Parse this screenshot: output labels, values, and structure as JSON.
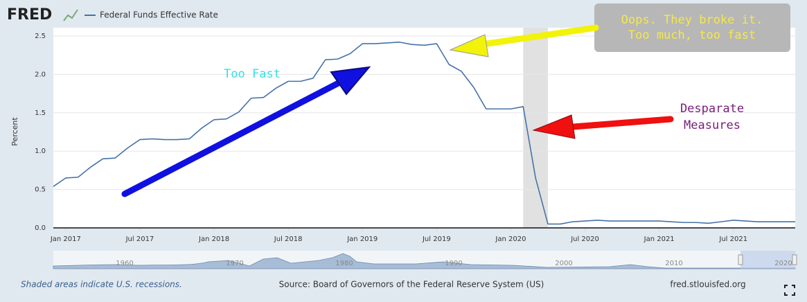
{
  "chart_data": {
    "type": "line",
    "logo": "FRED",
    "ylabel": "Percent",
    "x": [
      "2016-12",
      "2017-01",
      "2017-02",
      "2017-03",
      "2017-04",
      "2017-05",
      "2017-06",
      "2017-07",
      "2017-08",
      "2017-09",
      "2017-10",
      "2017-11",
      "2017-12",
      "2018-01",
      "2018-02",
      "2018-03",
      "2018-04",
      "2018-05",
      "2018-06",
      "2018-07",
      "2018-08",
      "2018-09",
      "2018-10",
      "2018-11",
      "2018-12",
      "2019-01",
      "2019-02",
      "2019-03",
      "2019-04",
      "2019-05",
      "2019-06",
      "2019-07",
      "2019-08",
      "2019-09",
      "2019-10",
      "2019-11",
      "2019-12",
      "2020-01",
      "2020-02",
      "2020-03",
      "2020-04",
      "2020-05",
      "2020-06",
      "2020-07",
      "2020-08",
      "2020-09",
      "2020-10",
      "2020-11",
      "2020-12",
      "2021-01",
      "2021-02",
      "2021-03",
      "2021-04",
      "2021-05",
      "2021-06",
      "2021-07",
      "2021-08",
      "2021-09",
      "2021-10",
      "2021-11",
      "2021-12"
    ],
    "series": [
      {
        "name": "Federal Funds Effective Rate",
        "color": "#4572a7",
        "values": [
          0.54,
          0.65,
          0.66,
          0.79,
          0.9,
          0.91,
          1.04,
          1.15,
          1.16,
          1.15,
          1.15,
          1.16,
          1.3,
          1.41,
          1.42,
          1.51,
          1.69,
          1.7,
          1.82,
          1.91,
          1.91,
          1.95,
          2.19,
          2.2,
          2.27,
          2.4,
          2.4,
          2.41,
          2.42,
          2.39,
          2.38,
          2.4,
          2.13,
          2.04,
          1.83,
          1.55,
          1.55,
          1.55,
          1.58,
          0.65,
          0.05,
          0.05,
          0.08,
          0.09,
          0.1,
          0.09,
          0.09,
          0.09,
          0.09,
          0.09,
          0.08,
          0.07,
          0.07,
          0.06,
          0.08,
          0.1,
          0.09,
          0.08,
          0.08,
          0.08,
          0.08
        ]
      }
    ],
    "xlim": [
      "2016-12",
      "2021-12"
    ],
    "xticks": [
      {
        "value": "2017-01",
        "label": "Jan 2017"
      },
      {
        "value": "2017-07",
        "label": "Jul 2017"
      },
      {
        "value": "2018-01",
        "label": "Jan 2018"
      },
      {
        "value": "2018-07",
        "label": "Jul 2018"
      },
      {
        "value": "2019-01",
        "label": "Jan 2019"
      },
      {
        "value": "2019-07",
        "label": "Jul 2019"
      },
      {
        "value": "2020-01",
        "label": "Jan 2020"
      },
      {
        "value": "2020-07",
        "label": "Jul 2020"
      },
      {
        "value": "2021-01",
        "label": "Jan 2021"
      },
      {
        "value": "2021-07",
        "label": "Jul 2021"
      }
    ],
    "ylim": [
      0,
      2.5
    ],
    "yticks": [
      {
        "value": 0,
        "label": "0.0"
      },
      {
        "value": 0.5,
        "label": "0.5"
      },
      {
        "value": 1,
        "label": "1.0"
      },
      {
        "value": 1.5,
        "label": "1.5"
      },
      {
        "value": 2,
        "label": "2.0"
      },
      {
        "value": 2.5,
        "label": "2.5"
      }
    ],
    "grid": true,
    "recessions": [
      {
        "start": "2020-02",
        "end": "2020-04"
      }
    ],
    "navigator_labels": [
      "1960",
      "1970",
      "1980",
      "1990",
      "2000",
      "2010",
      "2020"
    ],
    "annotations": [
      "Too Fast",
      "Oops. They broke it.",
      "Too much, too fast",
      "Desparate",
      "Measures"
    ],
    "footer": {
      "note": "Shaded areas indicate U.S. recessions.",
      "source": "Source: Board of Governors of the Federal Reserve System (US)",
      "url": "fred.stlouisfed.org"
    }
  }
}
